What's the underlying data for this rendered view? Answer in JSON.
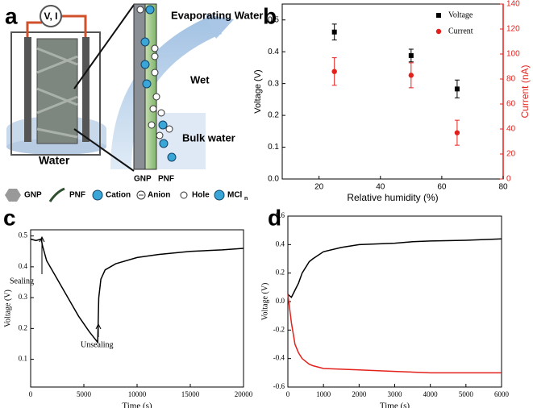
{
  "panel_labels": [
    "a",
    "b",
    "c",
    "d"
  ],
  "diagram": {
    "meter": "V, I",
    "water": "Water",
    "evaporating": "Evaporating Water",
    "wet": "Wet",
    "bulk": "Bulk water",
    "strip_labels": [
      "GNP",
      "PNF"
    ]
  },
  "legend": {
    "items": [
      "GNP",
      "PNF",
      "Cation",
      "Anion",
      "Hole"
    ],
    "mcl": "MCl",
    "mcl_sub": "n"
  },
  "chart_data": [
    {
      "type": "scatter",
      "xlabel": "Relative humidity (%)",
      "ylabel": "Voltage (V)",
      "y2label": "Current (nA)",
      "x": [
        25,
        50,
        65
      ],
      "series": [
        {
          "name": "Voltage",
          "color": "#000000",
          "marker": "square",
          "values": [
            0.462,
            0.388,
            0.283
          ],
          "errors": [
            0.025,
            0.02,
            0.028
          ]
        },
        {
          "name": "Current",
          "color": "#e3211c",
          "marker": "circle",
          "axis": "y2",
          "values": [
            86,
            83,
            37
          ],
          "errors": [
            11,
            10,
            10
          ]
        }
      ],
      "xlim": [
        8,
        80
      ],
      "xticks": [
        20,
        40,
        60,
        80
      ],
      "ylim": [
        0,
        0.55
      ],
      "yticks": [
        {
          "value": 0,
          "label": "0.0"
        },
        0.1,
        0.2,
        0.3,
        0.4,
        0.5
      ],
      "y2lim": [
        0,
        140
      ],
      "y2ticks": [
        0,
        20,
        40,
        60,
        80,
        100,
        120,
        140
      ],
      "legend": "upper right"
    },
    {
      "type": "line",
      "xlabel": "Time (s)",
      "ylabel": "Voltage (V)",
      "x": [
        0,
        500,
        1000,
        1100,
        1500,
        2500,
        3500,
        4500,
        5500,
        6300,
        6400,
        6600,
        7000,
        8000,
        10000,
        12000,
        15000,
        18000,
        20000
      ],
      "series": [
        {
          "color": "#000000",
          "values": [
            0.49,
            0.485,
            0.49,
            0.47,
            0.42,
            0.36,
            0.3,
            0.24,
            0.19,
            0.155,
            0.3,
            0.36,
            0.39,
            0.41,
            0.43,
            0.44,
            0.45,
            0.455,
            0.46
          ]
        }
      ],
      "xlim": [
        0,
        20000
      ],
      "xticks": [
        0,
        5000,
        10000,
        15000,
        20000
      ],
      "ylim": [
        0.01,
        0.52
      ],
      "yticks": [
        0.1,
        0.2,
        0.3,
        0.4,
        0.5
      ],
      "annotations": [
        "Sealing",
        "Unsealing"
      ]
    },
    {
      "type": "line",
      "xlabel": "Time (s)",
      "ylabel": "Voltage (V)",
      "x": [
        0,
        50,
        100,
        200,
        300,
        400,
        600,
        700,
        1000,
        1500,
        2000,
        3000,
        3500,
        4000,
        5000,
        6000
      ],
      "series": [
        {
          "color": "#000000",
          "values": [
            0.05,
            0.04,
            0.03,
            0.08,
            0.13,
            0.2,
            0.28,
            0.3,
            0.35,
            0.38,
            0.4,
            0.41,
            0.42,
            0.425,
            0.43,
            0.44
          ]
        },
        {
          "color": "#e3211c",
          "values": [
            0.05,
            -0.05,
            -0.15,
            -0.3,
            -0.36,
            -0.4,
            -0.44,
            -0.45,
            -0.47,
            -0.475,
            -0.48,
            -0.49,
            -0.495,
            -0.5,
            -0.5,
            -0.5
          ]
        }
      ],
      "xlim": [
        0,
        6000
      ],
      "xticks": [
        0,
        1000,
        2000,
        3000,
        4000,
        5000,
        6000
      ],
      "ylim": [
        -0.6,
        0.6
      ],
      "yticks": [
        -0.6,
        -0.4,
        -0.2,
        {
          "value": 0,
          "label": "0.0"
        },
        0.2,
        0.4,
        0.6
      ]
    }
  ]
}
